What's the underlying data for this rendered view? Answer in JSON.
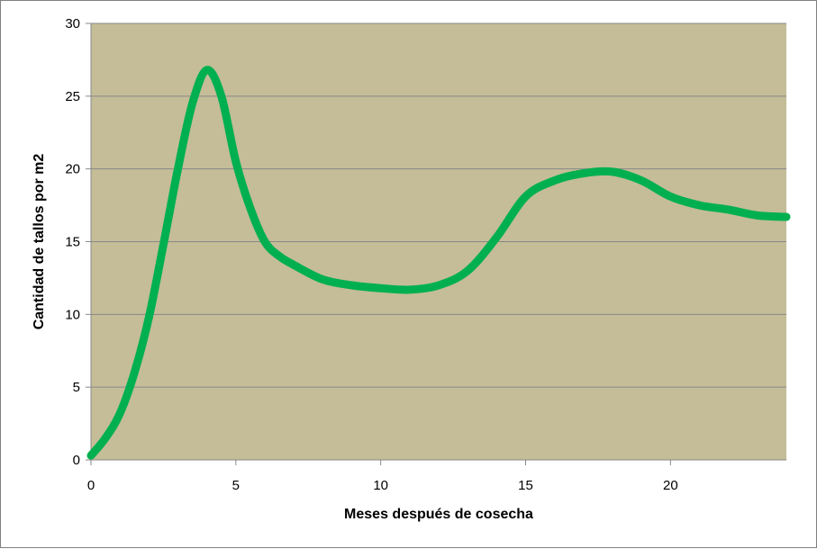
{
  "chart_data": {
    "type": "line",
    "title": "",
    "xlabel": "Meses después de cosecha",
    "ylabel": "Cantidad de tallos por m2",
    "xlim": [
      0,
      24
    ],
    "ylim": [
      0,
      30
    ],
    "x_ticks": [
      0,
      5,
      10,
      15,
      20
    ],
    "y_ticks": [
      0,
      5,
      10,
      15,
      20,
      25,
      30
    ],
    "grid": "horizontal",
    "legend": "none",
    "colors": {
      "plot_background": "#c4bd97",
      "series_line": "#00b050",
      "gridline": "#888888"
    },
    "series": [
      {
        "x": [
          0,
          0.5,
          1,
          1.5,
          2,
          2.5,
          3,
          3.5,
          4,
          4.5,
          5,
          5.5,
          6,
          6.5,
          7,
          8,
          9,
          10,
          11,
          12,
          13,
          14,
          15,
          16,
          17,
          18,
          19,
          20,
          21,
          22,
          23,
          24
        ],
        "values": [
          0.3,
          1.5,
          3.2,
          6,
          9.8,
          14.8,
          20,
          24.5,
          26.8,
          25,
          20.5,
          17.3,
          15,
          14,
          13.4,
          12.4,
          12,
          11.8,
          11.7,
          12,
          13,
          15.3,
          18.1,
          19.2,
          19.7,
          19.8,
          19.2,
          18.1,
          17.5,
          17.2,
          16.8,
          16.7
        ]
      }
    ]
  }
}
